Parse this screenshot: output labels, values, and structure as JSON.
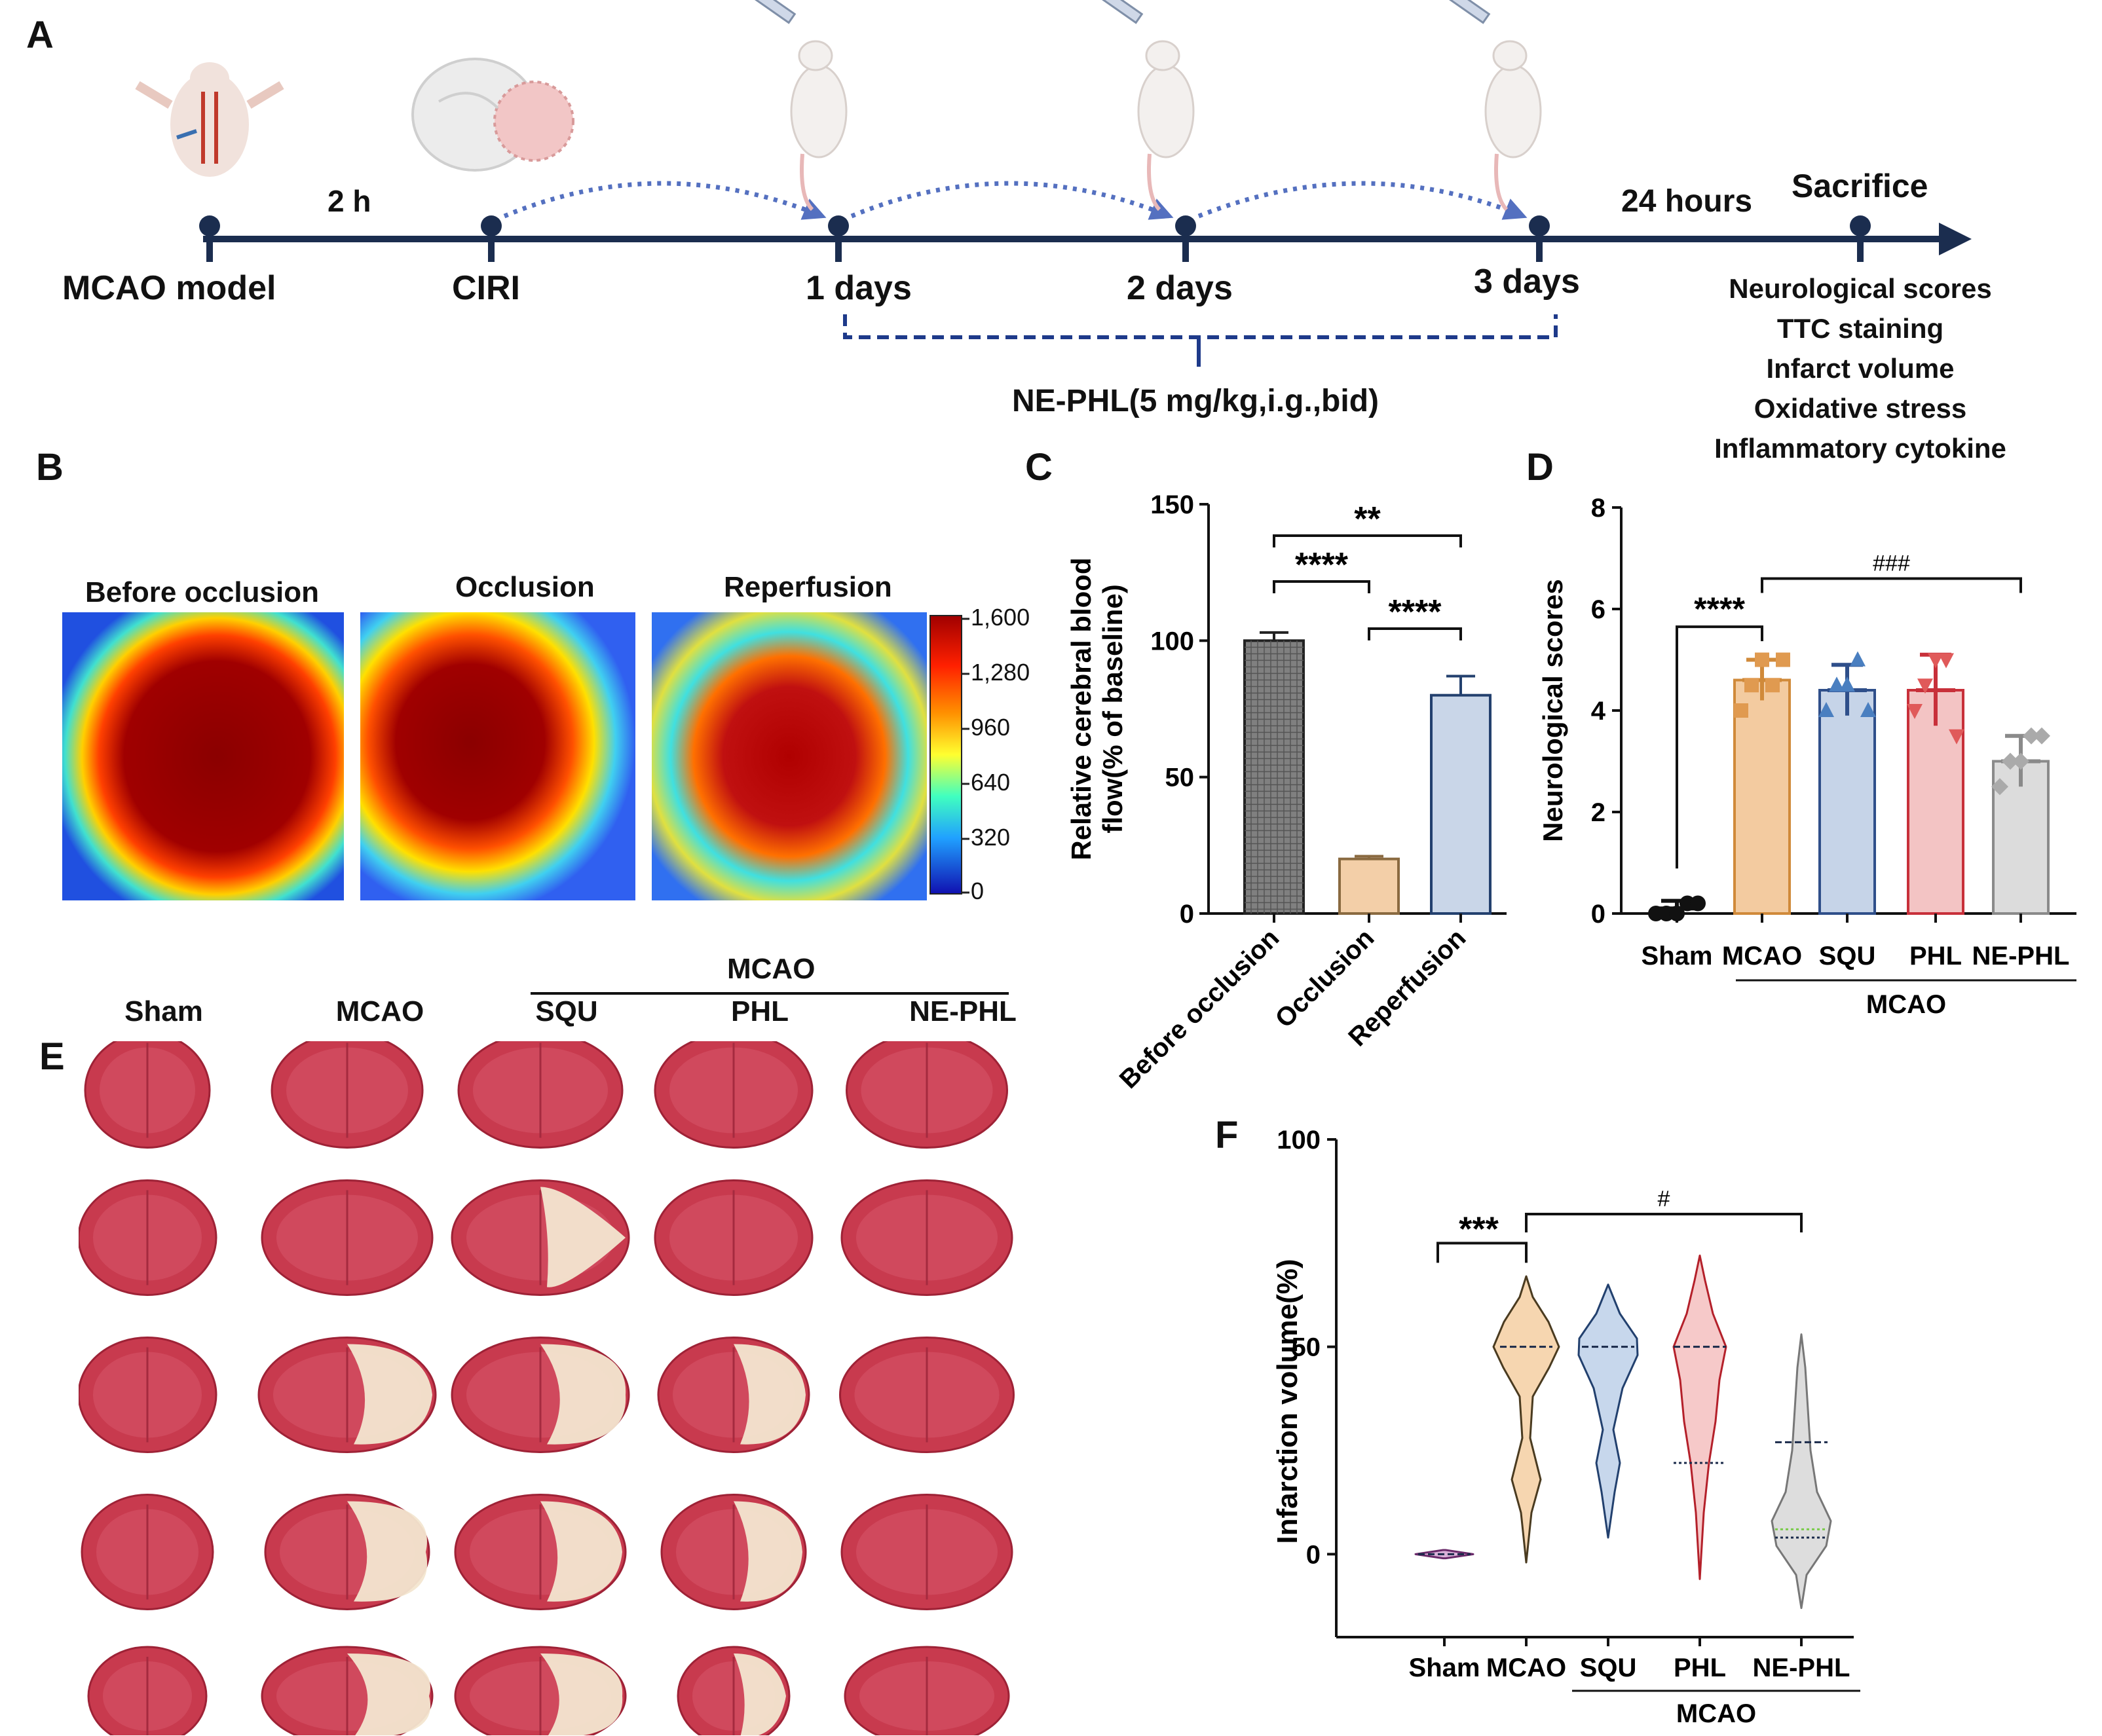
{
  "panels": {
    "a": "A",
    "b": "B",
    "c": "C",
    "d": "D",
    "e": "E",
    "f": "F"
  },
  "timeline": {
    "interval_label": "2 h",
    "final_interval_label": "24 hours",
    "stages": [
      "MCAO model",
      "CIRI",
      "1 days",
      "2 days",
      "3 days",
      "Sacrifice"
    ],
    "treatment": "NE-PHL(5 mg/kg,i.g.,bid)",
    "outcomes": [
      "Neurological scores",
      "TTC staining",
      "Infarct volume",
      "Oxidative stress",
      "Inflammatory cytokine"
    ]
  },
  "laser_doppler": {
    "images": [
      "Before occlusion",
      "Occlusion",
      "Reperfusion"
    ],
    "colorbar_ticks": [
      "1,600",
      "1,280",
      "960",
      "640",
      "320",
      "0"
    ]
  },
  "ttc": {
    "columns": [
      "Sham",
      "MCAO",
      "SQU",
      "PHL",
      "NE-PHL"
    ],
    "group_label": "MCAO"
  },
  "chart_data": [
    {
      "type": "bar",
      "panel": "C",
      "ylabel": "Relative cerebral blood flow(% of baseline)",
      "categories": [
        "Before occlusion",
        "Occlusion",
        "Reperfusion"
      ],
      "values": [
        100,
        20,
        80
      ],
      "errors": [
        3,
        1,
        7
      ],
      "ylim": [
        0,
        150
      ],
      "yticks": [
        0,
        50,
        100,
        150
      ],
      "colors": [
        "#808080",
        "#f3cfa8",
        "#c9d6e8"
      ],
      "significance": [
        {
          "from": 0,
          "to": 2,
          "label": "**"
        },
        {
          "from": 0,
          "to": 1,
          "label": "****"
        },
        {
          "from": 1,
          "to": 2,
          "label": "****"
        }
      ]
    },
    {
      "type": "bar",
      "panel": "D",
      "ylabel": "Neurological scores",
      "categories": [
        "Sham",
        "MCAO",
        "SQU",
        "PHL",
        "NE-PHL"
      ],
      "group_label": "MCAO",
      "values": [
        0.1,
        4.6,
        4.4,
        4.4,
        3.0
      ],
      "errors": [
        0.15,
        0.4,
        0.5,
        0.7,
        0.5
      ],
      "points": [
        [
          0,
          0,
          0,
          0.2,
          0.2
        ],
        [
          4,
          4.5,
          5,
          4.5,
          5
        ],
        [
          4,
          4.5,
          4.5,
          5,
          4
        ],
        [
          4,
          4.5,
          5,
          5,
          3.5
        ],
        [
          2.5,
          3,
          3,
          3.5,
          3.5
        ]
      ],
      "ylim": [
        0,
        8
      ],
      "yticks": [
        0,
        2,
        4,
        6,
        8
      ],
      "colors": [
        "#333333",
        "#f3cba0",
        "#c6d4e8",
        "#f3c4c4",
        "#dcdcdc"
      ],
      "edge_colors": [
        "#111111",
        "#d08a3a",
        "#2f4f8a",
        "#c8303a",
        "#8a8a8a"
      ],
      "significance": [
        {
          "from": 0,
          "to": 1,
          "label": "****"
        },
        {
          "from": 1,
          "to": 4,
          "label": "###"
        }
      ]
    },
    {
      "type": "violin",
      "panel": "F",
      "ylabel": "Infarction volume(%)",
      "categories": [
        "Sham",
        "MCAO",
        "SQU",
        "PHL",
        "NE-PHL"
      ],
      "group_label": "MCAO",
      "medians": [
        0,
        50,
        50,
        50,
        6
      ],
      "quartile_lines": [
        [
          0
        ],
        [
          50
        ],
        [
          50
        ],
        [
          50,
          22
        ],
        [
          27,
          6,
          4
        ]
      ],
      "ylim": [
        -20,
        100
      ],
      "yticks": [
        0,
        50,
        100
      ],
      "fill_colors": [
        "#d9b0d8",
        "#f6d6b0",
        "#c7d7ec",
        "#f6c9c9",
        "#dddddd"
      ],
      "edge_colors": [
        "#6a2a6a",
        "#4a3b20",
        "#22406e",
        "#b4202a",
        "#777777"
      ],
      "significance": [
        {
          "from": 0,
          "to": 1,
          "label": "***"
        },
        {
          "from": 1,
          "to": 4,
          "label": "#"
        }
      ]
    }
  ]
}
